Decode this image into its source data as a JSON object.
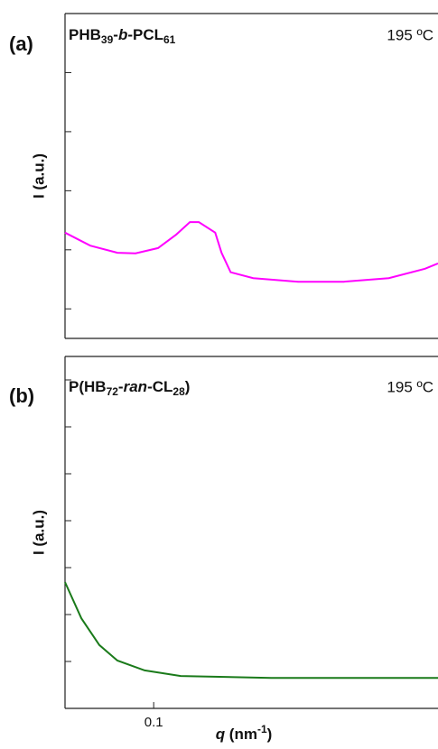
{
  "chart_data": [
    {
      "type": "line",
      "panel_label": "(a)",
      "title_parts": [
        "PHB",
        "39",
        "-",
        "b",
        "-PCL",
        "61"
      ],
      "annotation": "195 ºC",
      "ylabel": "I (a.u.)",
      "xscale": "log",
      "xlim": [
        0.055,
        0.68
      ],
      "ylim": [
        -0.5,
        5
      ],
      "yticks": [
        0,
        1,
        2,
        3,
        4,
        5
      ],
      "series": [
        {
          "color": "#ff00ff",
          "x": [
            0.055,
            0.0652,
            0.0783,
            0.0885,
            0.103,
            0.1165,
            0.1277,
            0.1356,
            0.1514,
            0.158,
            0.168,
            0.1956,
            0.265,
            0.36,
            0.488,
            0.623,
            0.68
          ],
          "values": [
            1.29,
            1.07,
            0.95,
            0.94,
            1.03,
            1.26,
            1.47,
            1.47,
            1.29,
            0.95,
            0.62,
            0.52,
            0.46,
            0.46,
            0.52,
            0.68,
            0.77
          ]
        }
      ]
    },
    {
      "type": "line",
      "panel_label": "(b)",
      "title_parts": [
        "P(HB",
        "72",
        "-",
        "ran",
        "-CL",
        "28",
        ")"
      ],
      "annotation": "195 ºC",
      "ylabel": "I (a.u.)",
      "xlabel_parts": [
        "q",
        " (nm",
        "-1",
        ")"
      ],
      "xscale": "log",
      "xlim": [
        0.055,
        0.68
      ],
      "xticks": [
        0.1
      ],
      "ylim": [
        0,
        7.5
      ],
      "yticks": [
        0,
        1,
        2,
        3,
        4,
        5,
        6,
        7
      ],
      "series": [
        {
          "color": "#1a7a1a",
          "x": [
            0.055,
            0.0614,
            0.0693,
            0.0783,
            0.0941,
            0.12,
            0.221,
            0.68
          ],
          "values": [
            2.69,
            1.92,
            1.35,
            1.02,
            0.81,
            0.69,
            0.65,
            0.65
          ]
        }
      ]
    }
  ]
}
